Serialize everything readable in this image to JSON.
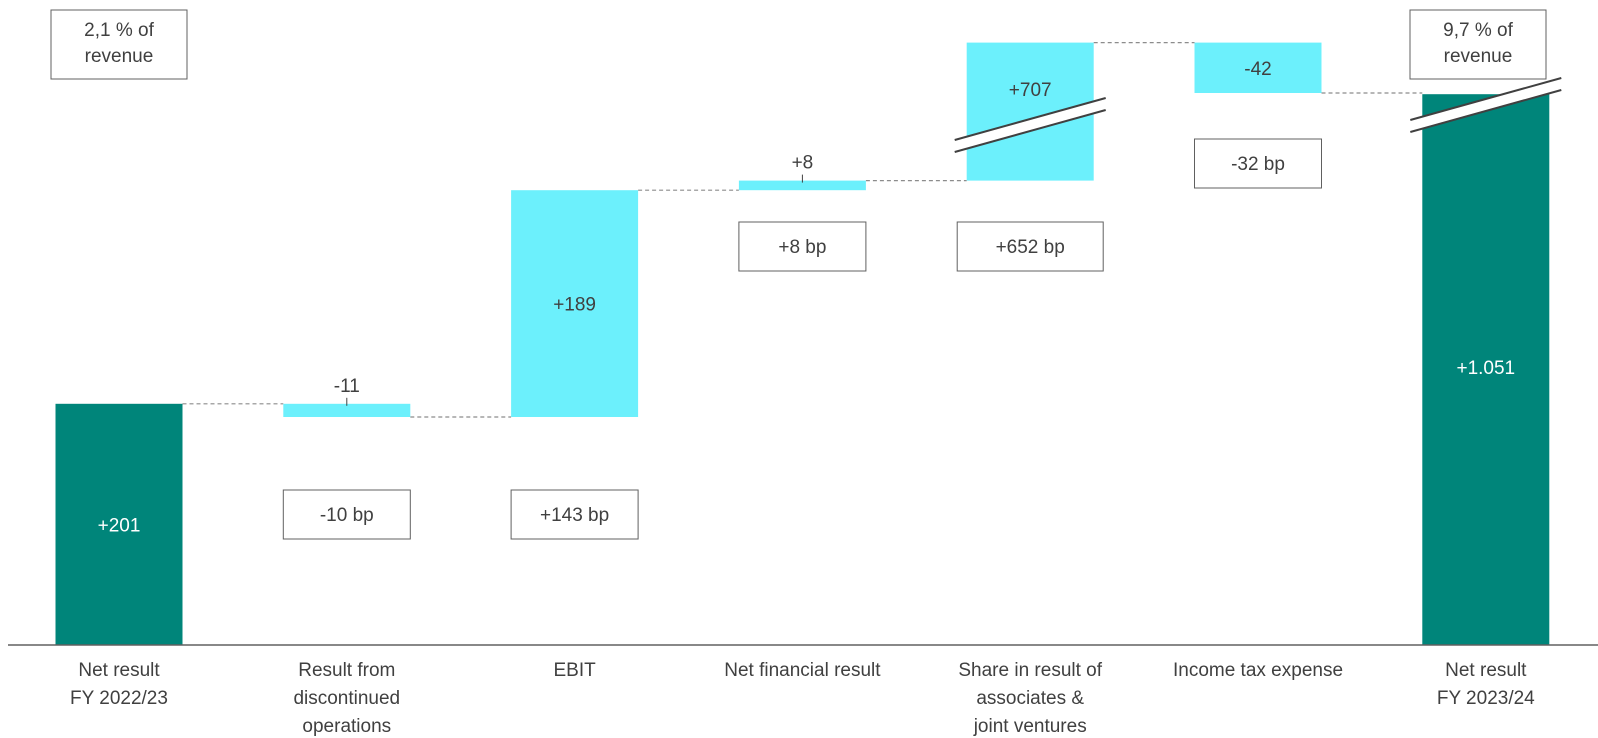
{
  "colors": {
    "total": "#00857A",
    "delta": "#6CF0FC",
    "connector": "#8C8C8C",
    "text_dark": "#404040",
    "text_light": "#FFFFFF",
    "box_border": "#606060",
    "axis": "#606060"
  },
  "revenue_notes": {
    "start": [
      "2,1 % of",
      "revenue"
    ],
    "end": [
      "9,7 % of",
      "revenue"
    ]
  },
  "chart_data": {
    "type": "waterfall",
    "categories": [
      [
        "Net result",
        "FY 2022/23"
      ],
      [
        "Result from",
        "discontinued",
        "operations"
      ],
      [
        "EBIT"
      ],
      [
        "Net financial result"
      ],
      [
        "Share in result of",
        "associates &",
        "joint ventures"
      ],
      [
        "Income tax expense"
      ],
      [
        "Net result",
        "FY 2023/24"
      ]
    ],
    "steps": [
      {
        "kind": "total",
        "value": 201,
        "label": "+201",
        "bp": ""
      },
      {
        "kind": "delta",
        "value": -11,
        "label": "-11",
        "bp": "-10 bp"
      },
      {
        "kind": "delta",
        "value": 189,
        "label": "+189",
        "bp": "+143 bp"
      },
      {
        "kind": "delta",
        "value": 8,
        "label": "+8",
        "bp": "+8 bp"
      },
      {
        "kind": "delta",
        "value": 707,
        "label": "+707",
        "bp": "+652 bp"
      },
      {
        "kind": "delta",
        "value": -42,
        "label": "-42",
        "bp": "-32 bp"
      },
      {
        "kind": "total",
        "value": 1051,
        "label": "+1.051",
        "bp": ""
      }
    ],
    "axis_break": true
  }
}
